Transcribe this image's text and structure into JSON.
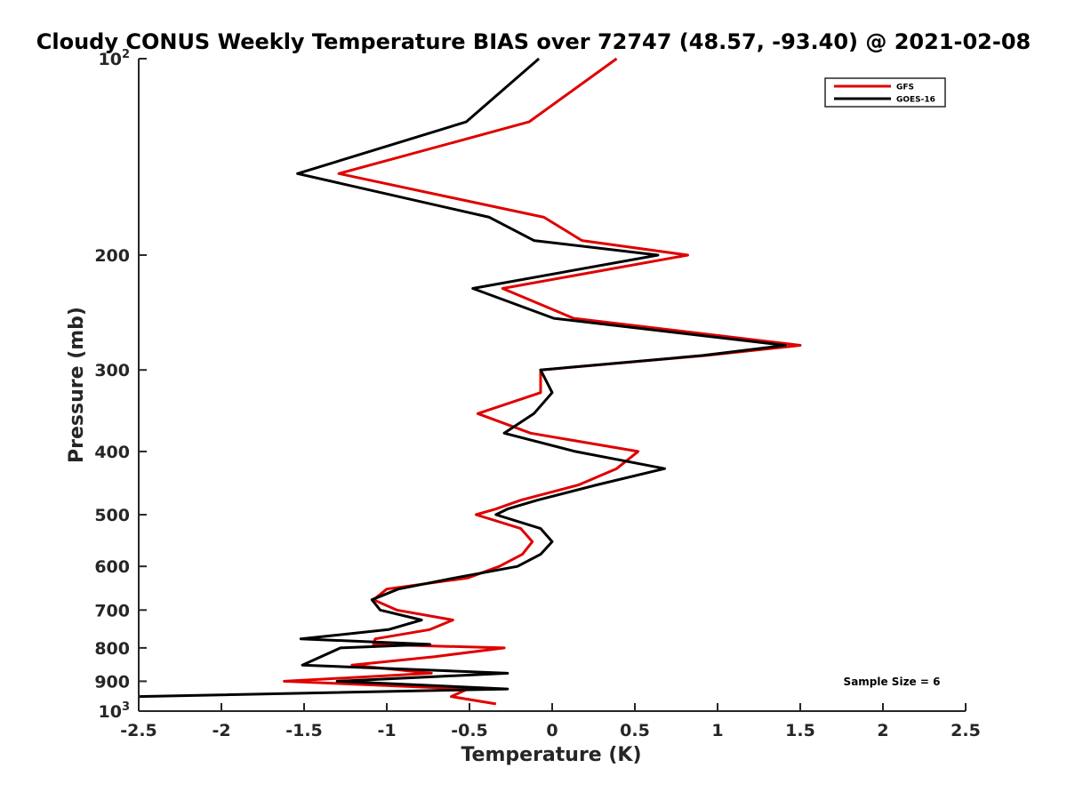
{
  "chart_data": {
    "type": "line",
    "title": "Cloudy CONUS Weekly Temperature BIAS over 72747 (48.57, -93.40) @ 2021-02-08",
    "xlabel": "Temperature (K)",
    "ylabel": "Pressure (mb)",
    "xlim": [
      -2.5,
      2.5
    ],
    "ylim": [
      100,
      1000
    ],
    "yscale": "log",
    "y_reversed": true,
    "x_ticks": [
      -2.5,
      -2,
      -1.5,
      -1,
      -0.5,
      0,
      0.5,
      1,
      1.5,
      2,
      2.5
    ],
    "x_tick_labels": [
      "-2.5",
      "-2",
      "-1.5",
      "-1",
      "-0.5",
      "0",
      "0.5",
      "1",
      "1.5",
      "2",
      "2.5"
    ],
    "y_ticks": [
      100,
      200,
      300,
      400,
      500,
      600,
      700,
      800,
      900,
      1000
    ],
    "y_tick_labels": [
      {
        "base": "10",
        "exp": "2"
      },
      {
        "base": "200"
      },
      {
        "base": "300"
      },
      {
        "base": "400"
      },
      {
        "base": "500"
      },
      {
        "base": "600"
      },
      {
        "base": "700"
      },
      {
        "base": "800"
      },
      {
        "base": "900"
      },
      {
        "base": "10",
        "exp": "3"
      }
    ],
    "legend_position": "top-right",
    "annotation": "Sample Size = 6",
    "series": [
      {
        "name": "GFS",
        "color": "#e00000",
        "points": [
          [
            0.39,
            100
          ],
          [
            -0.14,
            125
          ],
          [
            -1.29,
            150
          ],
          [
            -0.05,
            175
          ],
          [
            0.18,
            190
          ],
          [
            0.82,
            200
          ],
          [
            -0.3,
            225
          ],
          [
            0.13,
            250
          ],
          [
            1.5,
            275
          ],
          [
            0.93,
            285
          ],
          [
            -0.07,
            300
          ],
          [
            -0.07,
            325
          ],
          [
            -0.45,
            350
          ],
          [
            -0.13,
            375
          ],
          [
            0.52,
            400
          ],
          [
            0.39,
            425
          ],
          [
            0.16,
            450
          ],
          [
            -0.19,
            475
          ],
          [
            -0.34,
            490
          ],
          [
            -0.46,
            500
          ],
          [
            -0.19,
            525
          ],
          [
            -0.12,
            550
          ],
          [
            -0.18,
            575
          ],
          [
            -0.32,
            600
          ],
          [
            -0.51,
            625
          ],
          [
            -1.0,
            650
          ],
          [
            -1.08,
            675
          ],
          [
            -0.94,
            700
          ],
          [
            -0.6,
            725
          ],
          [
            -0.74,
            750
          ],
          [
            -1.07,
            775
          ],
          [
            -1.08,
            790
          ],
          [
            -0.29,
            800
          ],
          [
            -0.71,
            825
          ],
          [
            -1.21,
            850
          ],
          [
            -0.73,
            875
          ],
          [
            -1.62,
            900
          ],
          [
            -0.51,
            925
          ],
          [
            -0.61,
            950
          ],
          [
            -0.34,
            975
          ]
        ]
      },
      {
        "name": "GOES-16",
        "color": "#000000",
        "points": [
          [
            -0.08,
            100
          ],
          [
            -0.52,
            125
          ],
          [
            -1.54,
            150
          ],
          [
            -0.38,
            175
          ],
          [
            -0.11,
            190
          ],
          [
            0.64,
            200
          ],
          [
            -0.48,
            225
          ],
          [
            0.01,
            250
          ],
          [
            1.41,
            275
          ],
          [
            0.91,
            285
          ],
          [
            -0.07,
            300
          ],
          [
            0.0,
            325
          ],
          [
            -0.11,
            350
          ],
          [
            -0.29,
            375
          ],
          [
            0.14,
            400
          ],
          [
            0.68,
            425
          ],
          [
            0.27,
            450
          ],
          [
            -0.09,
            475
          ],
          [
            -0.27,
            490
          ],
          [
            -0.34,
            500
          ],
          [
            -0.07,
            525
          ],
          [
            0.0,
            550
          ],
          [
            -0.07,
            575
          ],
          [
            -0.21,
            600
          ],
          [
            -0.59,
            625
          ],
          [
            -0.93,
            650
          ],
          [
            -1.09,
            675
          ],
          [
            -1.04,
            700
          ],
          [
            -0.79,
            725
          ],
          [
            -0.99,
            750
          ],
          [
            -1.52,
            775
          ],
          [
            -0.74,
            790
          ],
          [
            -1.28,
            800
          ],
          [
            -1.51,
            850
          ],
          [
            -0.27,
            875
          ],
          [
            -1.3,
            900
          ],
          [
            -0.27,
            925
          ],
          [
            -2.5,
            950
          ]
        ]
      }
    ]
  }
}
